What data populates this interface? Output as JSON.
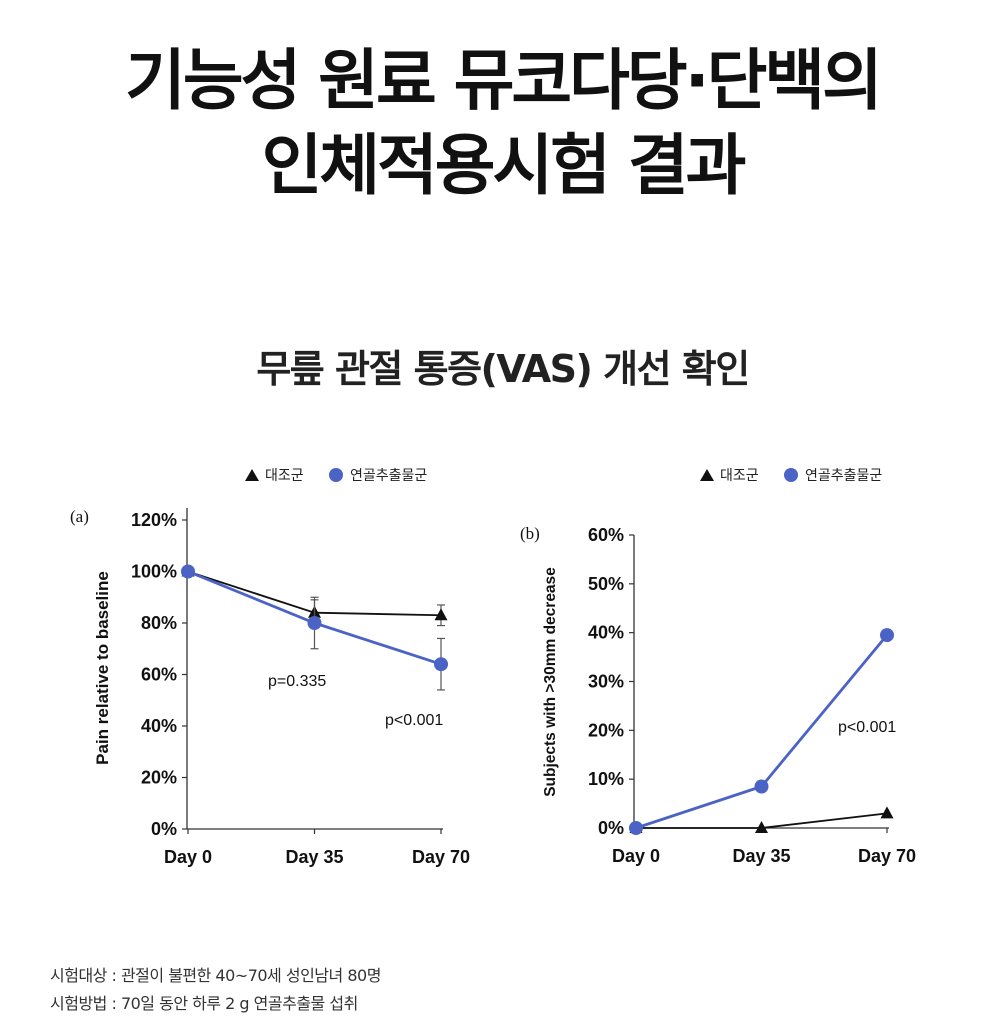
{
  "heading": {
    "line1": "기능성 원료 뮤코다당·단백의",
    "line2": "인체적용시험 결과"
  },
  "subtitle": "무릎 관절 통증(VAS) 개선 확인",
  "notes": {
    "line1": "시험대상 : 관절이 불편한 40~70세 성인남녀 80명",
    "line2": "시험방법 : 70일 동안 하루 2 g 연골추출물 섭취"
  },
  "colors": {
    "control": "#111111",
    "treatment": "#4a63c4"
  },
  "chart_data": [
    {
      "panel": "(a)",
      "type": "line",
      "categories": [
        "Day 0",
        "Day 35",
        "Day 70"
      ],
      "ylabel": "Pain relative to baseline",
      "ylim": [
        0,
        120
      ],
      "yticks": [
        "0%",
        "20%",
        "40%",
        "60%",
        "80%",
        "100%",
        "120%"
      ],
      "legend": [
        "대조군",
        "연골추출물군"
      ],
      "series": [
        {
          "name": "대조군",
          "marker": "triangle",
          "values": [
            100,
            84,
            83
          ],
          "err": [
            0,
            5,
            4
          ]
        },
        {
          "name": "연골추출물군",
          "marker": "circle",
          "values": [
            100,
            80,
            64
          ],
          "err": [
            0,
            10,
            10
          ]
        }
      ],
      "annotations": [
        "p=0.335",
        "p<0.001"
      ]
    },
    {
      "panel": "(b)",
      "type": "line",
      "categories": [
        "Day 0",
        "Day 35",
        "Day 70"
      ],
      "ylabel": "Subjects with >30mm decrease",
      "ylim": [
        0,
        60
      ],
      "yticks": [
        "0%",
        "10%",
        "20%",
        "30%",
        "40%",
        "50%",
        "60%"
      ],
      "legend": [
        "대조군",
        "연골추출물군"
      ],
      "series": [
        {
          "name": "대조군",
          "marker": "triangle",
          "values": [
            0,
            0,
            3
          ]
        },
        {
          "name": "연골추출물군",
          "marker": "circle",
          "values": [
            0,
            8.5,
            39.5
          ]
        }
      ],
      "annotations": [
        "p<0.001"
      ]
    }
  ]
}
